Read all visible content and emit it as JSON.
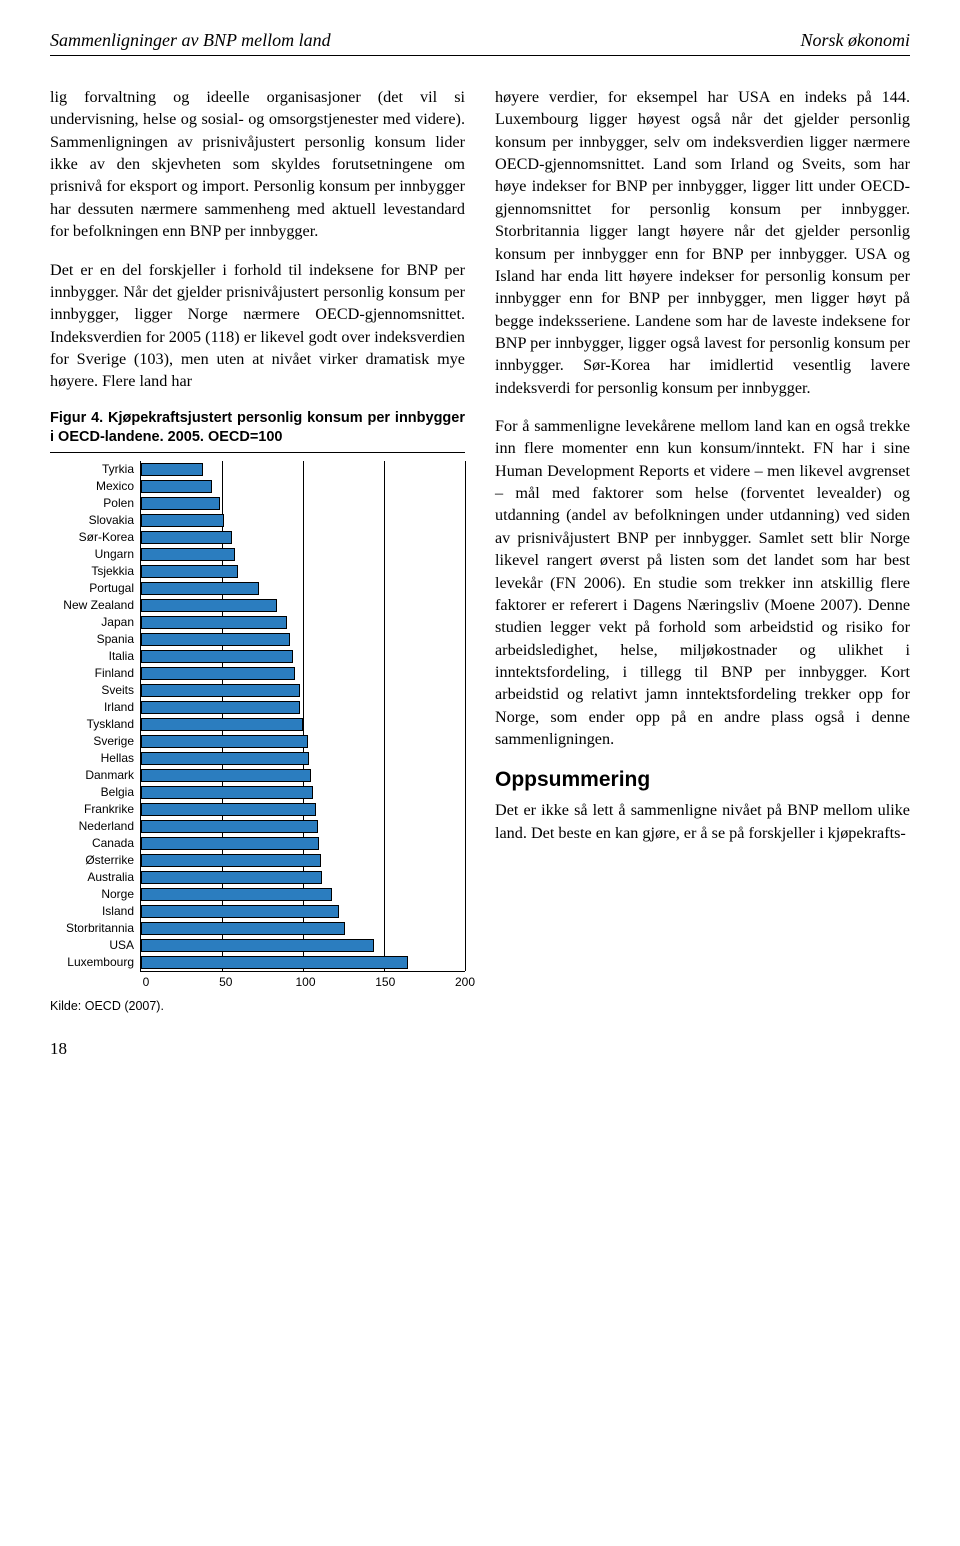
{
  "header": {
    "left": "Sammenligninger av BNP mellom land",
    "right": "Norsk økonomi"
  },
  "left_col": {
    "p1": "lig forvaltning og ideelle organisasjoner (det vil si undervisning, helse og sosial- og omsorgstjenester med videre). Sammenligningen av prisnivåjustert personlig konsum lider ikke av den skjevheten som skyldes forutsetningene om prisnivå for eksport og import. Personlig konsum per innbygger har dessuten nærmere sammenheng med aktuell levestandard for befolkningen enn BNP per innbygger.",
    "p2": "Det er en del forskjeller i forhold til indeksene for BNP per innbygger. Når det gjelder prisnivåjustert personlig konsum per innbygger, ligger Norge nærmere OECD-gjennomsnittet. Indeksverdien for 2005 (118) er likevel godt over indeksverdien for Sverige (103), men uten at nivået virker dramatisk mye høyere. Flere land har"
  },
  "right_col": {
    "p1": "høyere verdier, for eksempel har USA en indeks på 144. Luxembourg ligger høyest også når det gjelder personlig konsum per innbygger, selv om indeksverdien ligger nærmere OECD-gjennomsnittet. Land som Irland og Sveits, som har høye indekser for BNP per innbygger, ligger litt under OECD-gjennomsnittet for personlig konsum per innbygger. Storbritannia ligger langt høyere når det gjelder personlig konsum per innbygger enn for BNP per innbygger. USA og Island har enda litt høyere indekser for personlig konsum per innbygger enn for BNP per innbygger, men ligger høyt på begge indeksseriene. Landene som har de laveste indeksene for BNP per innbygger, ligger også lavest for personlig konsum per innbygger. Sør-Korea har imidlertid vesentlig lavere indeksverdi for personlig konsum per innbygger.",
    "p2": "For å sammenligne levekårene mellom land kan en også trekke inn flere momenter enn kun konsum/inntekt. FN har i sine Human Development Reports et videre – men likevel avgrenset – mål med faktorer som helse (forventet levealder) og utdanning (andel av befolkningen under utdanning) ved siden av prisnivåjustert BNP per innbygger. Samlet sett blir Norge likevel rangert øverst på listen som det landet som har best levekår (FN 2006). En studie som trekker inn atskillig flere faktorer er referert i Dagens Næringsliv (Moene 2007). Denne studien legger vekt på forhold som arbeidstid og risiko for arbeidsledighet, helse, miljøkostnader og ulikhet i inntektsfordeling, i tillegg til BNP per innbygger. Kort arbeidstid og relativt jamn inntektsfordeling trekker opp for Norge, som ender opp på en andre plass også i denne sammenligningen.",
    "heading": "Oppsummering",
    "p3": "Det er ikke så lett å sammenligne nivået på BNP mellom ulike land. Det beste en kan gjøre, er å se på forskjeller i kjøpekrafts-"
  },
  "figure": {
    "caption": "Figur 4. Kjøpekraftsjustert personlig konsum per innbygger i OECD-landene. 2005. OECD=100",
    "source": "Kilde: OECD (2007).",
    "chart": {
      "type": "bar",
      "xlim": [
        0,
        200
      ],
      "xtick_step": 50,
      "xticks": [
        0,
        50,
        100,
        150,
        200
      ],
      "bar_color": "#2b7dbf",
      "bar_border": "#000000",
      "grid_color": "#000000",
      "background_color": "#ffffff",
      "label_fontsize": 12,
      "data": [
        {
          "label": "Tyrkia",
          "value": 38
        },
        {
          "label": "Mexico",
          "value": 44
        },
        {
          "label": "Polen",
          "value": 49
        },
        {
          "label": "Slovakia",
          "value": 51
        },
        {
          "label": "Sør-Korea",
          "value": 56
        },
        {
          "label": "Ungarn",
          "value": 58
        },
        {
          "label": "Tsjekkia",
          "value": 60
        },
        {
          "label": "Portugal",
          "value": 73
        },
        {
          "label": "New Zealand",
          "value": 84
        },
        {
          "label": "Japan",
          "value": 90
        },
        {
          "label": "Spania",
          "value": 92
        },
        {
          "label": "Italia",
          "value": 94
        },
        {
          "label": "Finland",
          "value": 95
        },
        {
          "label": "Sveits",
          "value": 98
        },
        {
          "label": "Irland",
          "value": 98
        },
        {
          "label": "Tyskland",
          "value": 100
        },
        {
          "label": "Sverige",
          "value": 103
        },
        {
          "label": "Hellas",
          "value": 104
        },
        {
          "label": "Danmark",
          "value": 105
        },
        {
          "label": "Belgia",
          "value": 106
        },
        {
          "label": "Frankrike",
          "value": 108
        },
        {
          "label": "Nederland",
          "value": 109
        },
        {
          "label": "Canada",
          "value": 110
        },
        {
          "label": "Østerrike",
          "value": 111
        },
        {
          "label": "Australia",
          "value": 112
        },
        {
          "label": "Norge",
          "value": 118
        },
        {
          "label": "Island",
          "value": 122
        },
        {
          "label": "Storbritannia",
          "value": 126
        },
        {
          "label": "USA",
          "value": 144
        },
        {
          "label": "Luxembourg",
          "value": 165
        }
      ]
    }
  },
  "page_number": "18"
}
